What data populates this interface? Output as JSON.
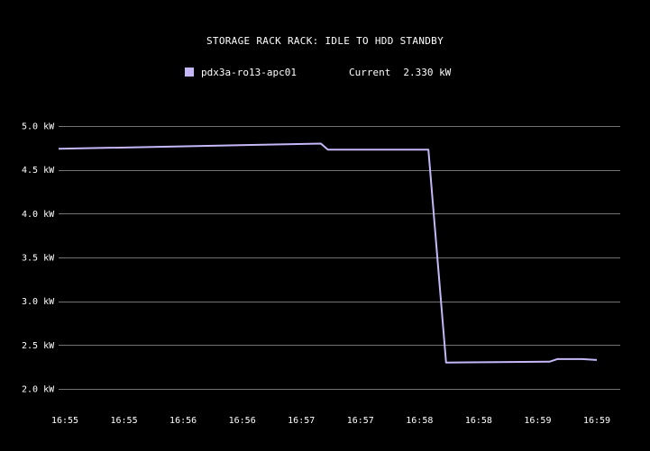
{
  "colors": {
    "background": "#000000",
    "series": "#c6b8f8",
    "grid": "#9a9a9a",
    "text": "#ffffff"
  },
  "legend": {
    "series_name": "pdx3a-ro13-apc01",
    "current_label": "Current",
    "current_value": "2.330 kW"
  },
  "chart_data": {
    "type": "line",
    "title": "STORAGE RACK RACK: IDLE TO HDD STANDBY",
    "xlabel": "",
    "ylabel": "",
    "ylim": [
      2.0,
      5.0
    ],
    "yticks": [
      5.0,
      4.5,
      4.0,
      3.5,
      3.0,
      2.5,
      2.0
    ],
    "ytick_labels": [
      "5.0 kW",
      "4.5 kW",
      "4.0 kW",
      "3.5 kW",
      "3.0 kW",
      "2.5 kW",
      "2.0 kW"
    ],
    "xtick_labels": [
      "16:55",
      "16:55",
      "16:56",
      "16:56",
      "16:57",
      "16:57",
      "16:58",
      "16:58",
      "16:59",
      "16:59"
    ],
    "grid": true,
    "legend_position": "top",
    "series": [
      {
        "name": "pdx3a-ro13-apc01",
        "unit": "kW",
        "x": [
          0,
          4.33,
          4.45,
          6.15,
          6.45,
          8.2,
          8.33,
          8.75,
          9.0
        ],
        "y": [
          4.74,
          4.8,
          4.73,
          4.73,
          2.3,
          2.31,
          2.34,
          2.34,
          2.33
        ]
      }
    ]
  }
}
